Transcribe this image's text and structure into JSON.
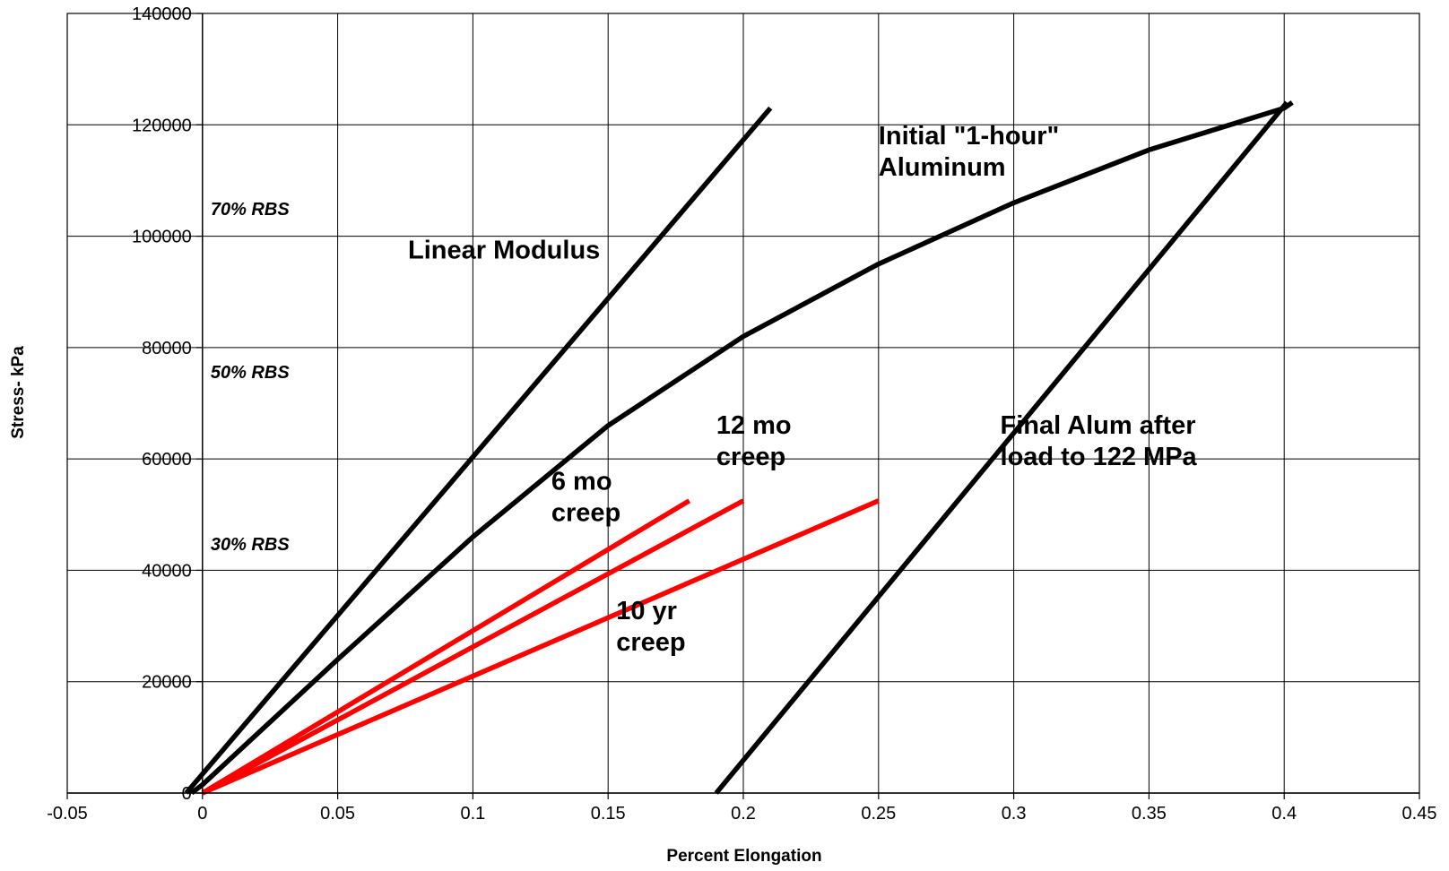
{
  "chart_data": {
    "type": "line",
    "title": "",
    "xlabel": "Percent Elongation",
    "ylabel": "Stress- kPa",
    "xlim": [
      -0.05,
      0.45
    ],
    "ylim": [
      0,
      140000
    ],
    "x_ticks": [
      -0.05,
      0,
      0.05,
      0.1,
      0.15,
      0.2,
      0.25,
      0.3,
      0.35,
      0.4,
      0.45
    ],
    "x_tick_labels": [
      "-0.05",
      "0",
      "0.05",
      "0.1",
      "0.15",
      "0.2",
      "0.25",
      "0.3",
      "0.35",
      "0.4",
      "0.45"
    ],
    "y_ticks": [
      0,
      20000,
      40000,
      60000,
      80000,
      100000,
      120000,
      140000
    ],
    "y_tick_labels": [
      "0",
      "20000",
      "40000",
      "60000",
      "80000",
      "100000",
      "120000",
      "140000"
    ],
    "grid": true,
    "legend": "none",
    "series": [
      {
        "name": "Linear Modulus",
        "color": "#000000",
        "points": [
          [
            -0.006,
            0
          ],
          [
            0.21,
            123000
          ]
        ]
      },
      {
        "name": "Initial \"1-hour\" Aluminum",
        "color": "#000000",
        "points": [
          [
            -0.004,
            0
          ],
          [
            0.0,
            1500
          ],
          [
            0.05,
            24000
          ],
          [
            0.1,
            46000
          ],
          [
            0.15,
            66000
          ],
          [
            0.2,
            82000
          ],
          [
            0.25,
            95000
          ],
          [
            0.3,
            106000
          ],
          [
            0.35,
            115500
          ],
          [
            0.4,
            123000
          ],
          [
            0.403,
            124000
          ]
        ]
      },
      {
        "name": "Final Alum after load to 122 MPa",
        "color": "#000000",
        "points": [
          [
            0.19,
            0
          ],
          [
            0.401,
            124000
          ]
        ]
      },
      {
        "name": "6 mo creep",
        "color": "#ff0000",
        "points": [
          [
            0.0,
            0
          ],
          [
            0.18,
            52500
          ]
        ]
      },
      {
        "name": "12 mo creep",
        "color": "#ff0000",
        "points": [
          [
            0.0,
            0
          ],
          [
            0.2,
            52500
          ]
        ]
      },
      {
        "name": "10 yr creep",
        "color": "#ff0000",
        "points": [
          [
            0.0,
            0
          ],
          [
            0.25,
            52500
          ]
        ]
      }
    ],
    "annotations": [
      {
        "lines": [
          "Linear Modulus"
        ],
        "style": "bold",
        "x": 0.076,
        "y": 96000
      },
      {
        "lines": [
          "Initial \"1-hour\"",
          "Aluminum"
        ],
        "style": "bold",
        "x": 0.25,
        "y": 116500
      },
      {
        "lines": [
          "12 mo",
          "creep"
        ],
        "style": "bold",
        "x": 0.19,
        "y": 64500
      },
      {
        "lines": [
          "6 mo",
          "creep"
        ],
        "style": "bold",
        "x": 0.129,
        "y": 54500
      },
      {
        "lines": [
          "10 yr",
          "creep"
        ],
        "style": "bold",
        "x": 0.153,
        "y": 31200
      },
      {
        "lines": [
          "Final Alum after",
          "load to 122 MPa"
        ],
        "style": "bold",
        "x": 0.295,
        "y": 64500
      },
      {
        "lines": [
          "70% RBS"
        ],
        "style": "bold-italic",
        "x": 0.003,
        "y": 103800
      },
      {
        "lines": [
          "50% RBS"
        ],
        "style": "bold-italic",
        "x": 0.003,
        "y": 74500
      },
      {
        "lines": [
          "30% RBS"
        ],
        "style": "bold-italic",
        "x": 0.003,
        "y": 43600
      }
    ]
  }
}
